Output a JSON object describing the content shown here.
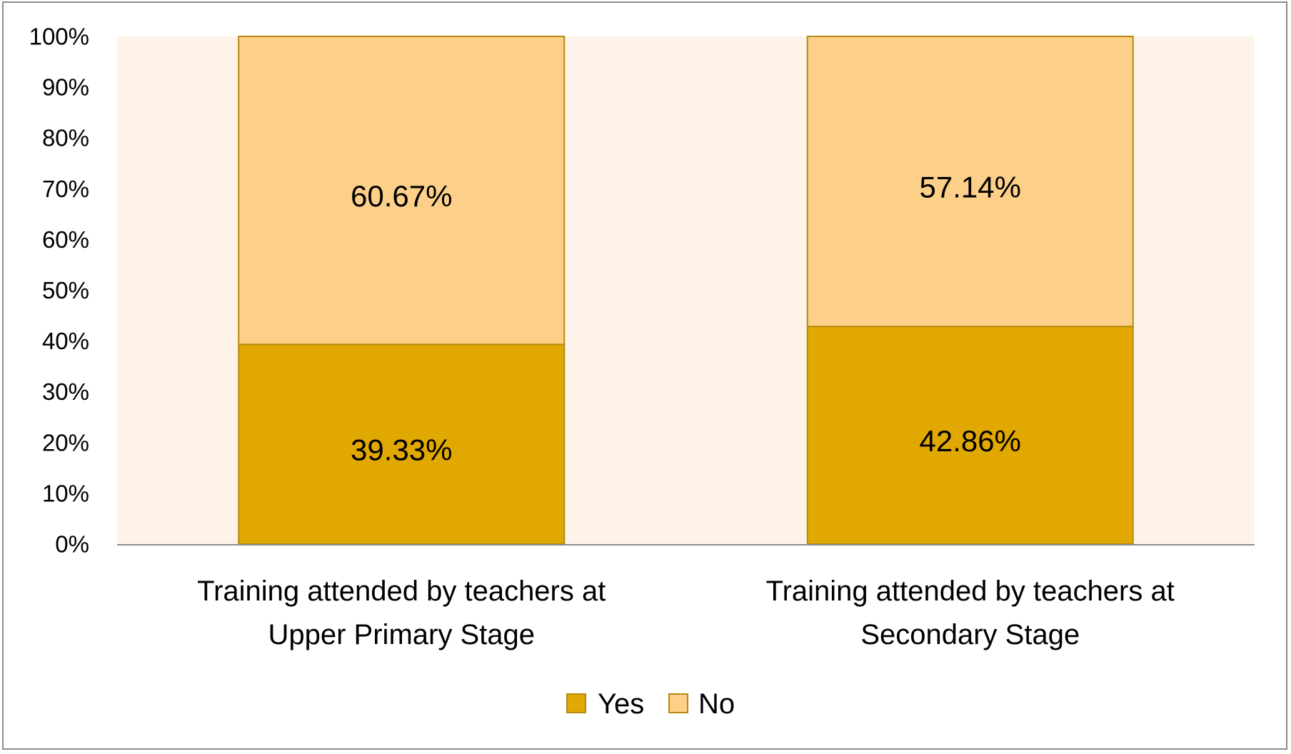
{
  "chart_data": {
    "type": "bar",
    "stacked": true,
    "percent_stacked": true,
    "categories": [
      [
        "Training attended by teachers at",
        "Upper Primary Stage"
      ],
      [
        "Training attended by teachers at",
        "Secondary Stage"
      ]
    ],
    "series": [
      {
        "name": "Yes",
        "values": [
          39.33,
          42.86
        ],
        "labels": [
          "39.33%",
          "42.86%"
        ],
        "color": "#E0A800"
      },
      {
        "name": "No",
        "values": [
          60.67,
          57.14
        ],
        "labels": [
          "60.67%",
          "57.14%"
        ],
        "color": "#FDD08A"
      }
    ],
    "ylim": [
      0,
      100
    ],
    "yticks": [
      "0%",
      "10%",
      "20%",
      "30%",
      "40%",
      "50%",
      "60%",
      "70%",
      "80%",
      "90%",
      "100%"
    ],
    "grid": false,
    "legend": "bottom",
    "colors": {
      "plot_background": "#FDF3E8",
      "bar_border": "#B58A10",
      "axis": "#8c8c8c"
    }
  }
}
